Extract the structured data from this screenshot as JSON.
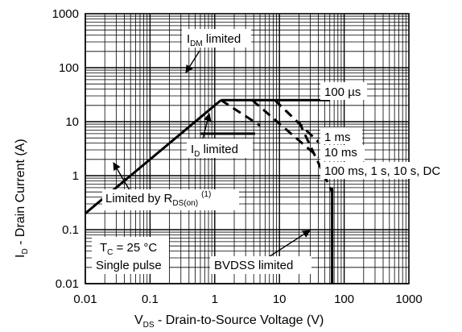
{
  "chart_data": {
    "type": "line",
    "scale": {
      "x": "log",
      "y": "log"
    },
    "xlim": [
      0.01,
      1000
    ],
    "ylim": [
      0.01,
      1000
    ],
    "grid": true,
    "x_ticks": [
      "0.01",
      "0.1",
      "1",
      "10",
      "100",
      "1000"
    ],
    "y_ticks": [
      "1000",
      "100",
      "10",
      "1",
      "0.1",
      "0.01"
    ],
    "x_tick_values": [
      0.01,
      0.1,
      1,
      10,
      100,
      1000
    ],
    "y_tick_values": [
      1000,
      100,
      10,
      1,
      0.1,
      0.01
    ],
    "xlabel": {
      "pre": "V",
      "sub": "DS",
      "post": " - Drain-to-Source Voltage (V)"
    },
    "ylabel": {
      "pre": "I",
      "sub": "D",
      "post": " - Drain Current (A)"
    },
    "series": [
      {
        "id": "rdson",
        "style": "solid",
        "points": [
          [
            0.01,
            0.2
          ],
          [
            1.25,
            25
          ]
        ]
      },
      {
        "id": "idm",
        "style": "solid",
        "points": [
          [
            1.25,
            25
          ],
          [
            60,
            25
          ]
        ]
      },
      {
        "id": "id-limit",
        "style": "solid",
        "points": [
          [
            0.6,
            6
          ],
          [
            4.2,
            6
          ]
        ]
      },
      {
        "id": "bvdss",
        "style": "solid",
        "points": [
          [
            65,
            0.01
          ],
          [
            65,
            0.6
          ]
        ]
      },
      {
        "id": "100us",
        "style": "dashed",
        "points": [
          [
            1.25,
            25
          ],
          [
            5,
            8.5
          ]
        ]
      },
      {
        "id": "1ms",
        "style": "dashed",
        "points": [
          [
            3.8,
            25
          ],
          [
            40,
            2.2
          ]
        ]
      },
      {
        "id": "10ms",
        "style": "dashed",
        "points": [
          [
            8.5,
            25
          ],
          [
            40,
            4.2
          ]
        ]
      },
      {
        "id": "100ms-dc",
        "style": "dashed",
        "points": [
          [
            20,
            10
          ],
          [
            65,
            0.5
          ]
        ]
      }
    ],
    "annotations": {
      "idm": {
        "pre": "I",
        "sub": "DM",
        "post": " limited"
      },
      "us100": "100 µs",
      "ms1": "1 ms",
      "ms10": "10 ms",
      "dc": "100 ms, 1 s, 10 s, DC",
      "id": {
        "pre": "I",
        "sub": "D",
        "post": " limited"
      },
      "rdson": {
        "pre": "Limited by R",
        "sub": "DS(on)",
        "sup": "(1)"
      },
      "tc": {
        "pre": "T",
        "sub": "C",
        "post": " = 25 °C"
      },
      "single": "Single pulse",
      "bvdss": "BVDSS limited"
    }
  }
}
